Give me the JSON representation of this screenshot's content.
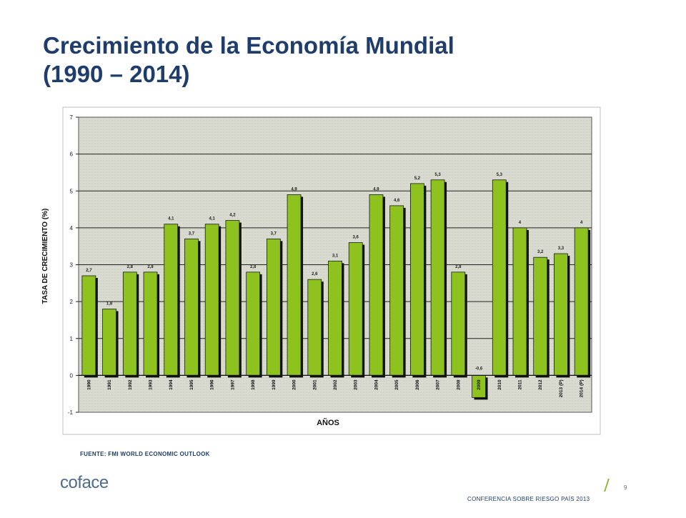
{
  "slide": {
    "title_line1": "Crecimiento de la Economía Mundial",
    "title_line2": "(1990 – 2014)",
    "source": "FUENTE: FMI WORLD ECONOMIC OUTLOOK",
    "logo": "coface",
    "page_number": "9",
    "footer": "CONFERENCIA SOBRE RIESGO PAÍS 2013"
  },
  "colors": {
    "title": "#1f3d6b",
    "bar": "#8dc21f",
    "plot_bg": "#d9dbd0",
    "accent": "#8fb43a"
  },
  "chart_data": {
    "type": "bar",
    "xlabel": "AÑOS",
    "ylabel": "TASA DE CRECIMIENTO (%)",
    "ylim": [
      -1,
      7
    ],
    "yticks": [
      -1,
      0,
      1,
      2,
      3,
      4,
      5,
      6,
      7
    ],
    "grid": true,
    "categories": [
      "1990",
      "1991",
      "1992",
      "1993",
      "1994",
      "1995",
      "1996",
      "1997",
      "1998",
      "1999",
      "2000",
      "2001",
      "2002",
      "2003",
      "2004",
      "2005",
      "2006",
      "2007",
      "2008",
      "2009",
      "2010",
      "2011",
      "2012",
      "2013 (P)",
      "2014 (P)"
    ],
    "values": [
      2.7,
      1.8,
      2.8,
      2.8,
      4.1,
      3.7,
      4.1,
      4.2,
      2.8,
      3.7,
      4.9,
      2.6,
      3.1,
      3.6,
      4.9,
      4.6,
      5.2,
      5.3,
      2.8,
      -0.6,
      5.3,
      4,
      3.2,
      3.3,
      4
    ],
    "data_labels": [
      "2,7",
      "1,8",
      "2,8",
      "2,8",
      "4,1",
      "3,7",
      "4,1",
      "4,2",
      "2,8",
      "3,7",
      "4,9",
      "2,6",
      "3,1",
      "3,6",
      "4,9",
      "4,6",
      "5,2",
      "5,3",
      "2,8",
      "-0,6",
      "5,3",
      "4",
      "3,2",
      "3,3",
      "4"
    ]
  }
}
